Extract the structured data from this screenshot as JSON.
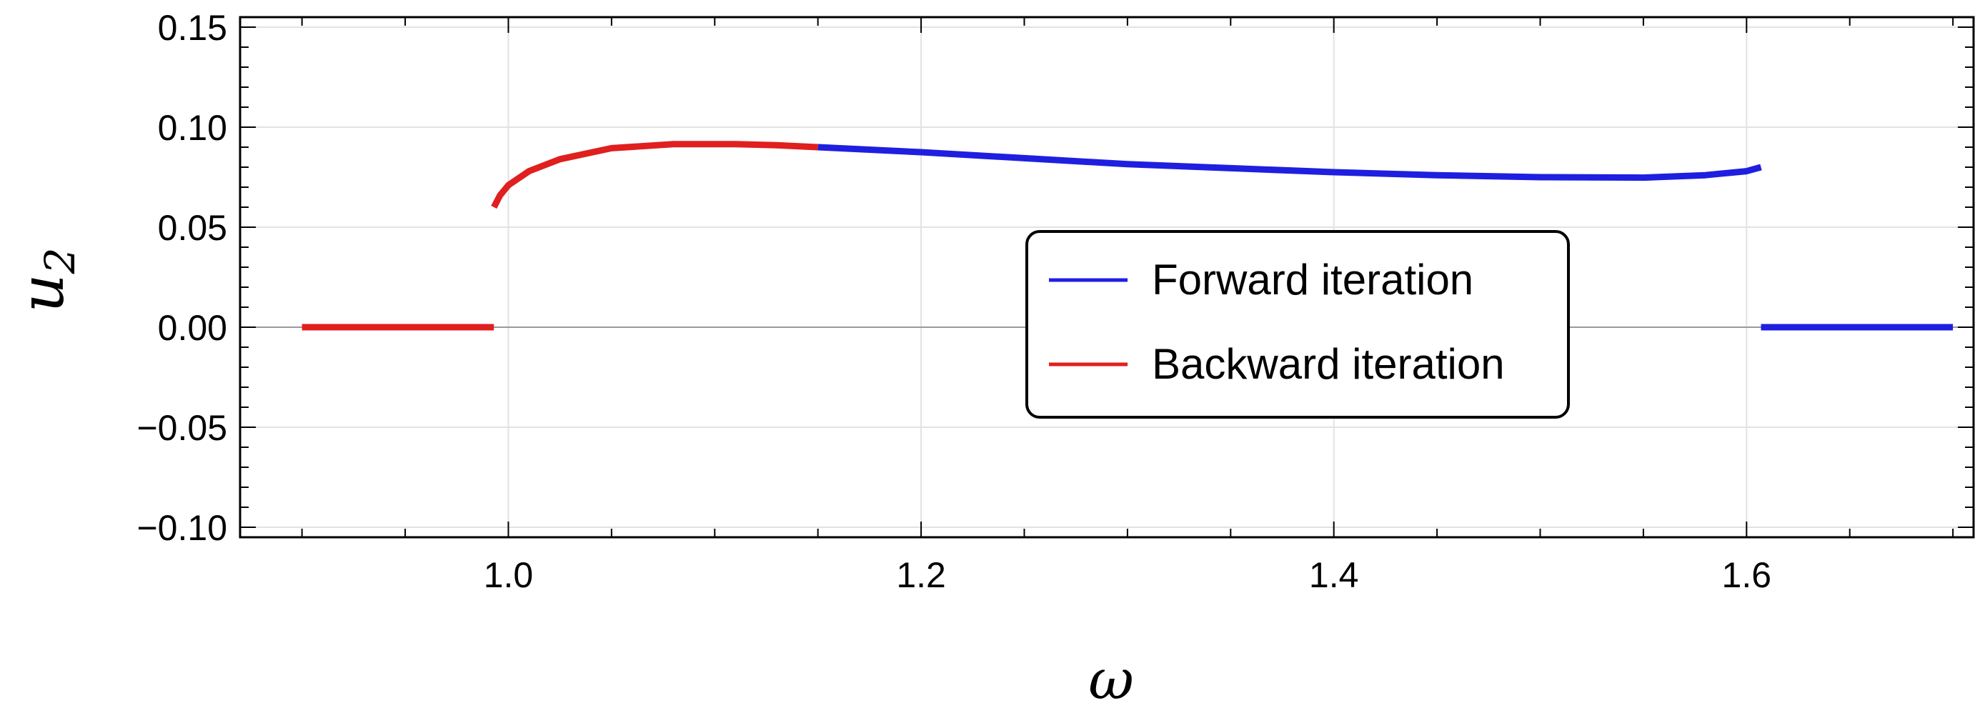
{
  "chart_data": {
    "type": "line",
    "xlabel": "ω",
    "ylabel_base": "u",
    "ylabel_sub": "2",
    "xlim": [
      0.87,
      1.71
    ],
    "ylim": [
      -0.105,
      0.155
    ],
    "x_ticks": [
      1.0,
      1.2,
      1.4,
      1.6
    ],
    "x_tick_labels": [
      "1.0",
      "1.2",
      "1.4",
      "1.6"
    ],
    "x_minor_step": 0.05,
    "y_ticks": [
      -0.1,
      -0.05,
      0.0,
      0.05,
      0.1,
      0.15
    ],
    "y_tick_labels": [
      "−0.10",
      "−0.05",
      "0.00",
      "0.05",
      "0.10",
      "0.15"
    ],
    "y_minor_step": 0.01,
    "grid": true,
    "legend_placement": "center-right",
    "colors": {
      "forward": "#1f1fe0",
      "backward": "#e01f1f"
    },
    "series": [
      {
        "name": "Forward iteration",
        "color": "#1f1fe0",
        "segments": [
          {
            "x": [
              1.15,
              1.2,
              1.25,
              1.3,
              1.35,
              1.4,
              1.45,
              1.5,
              1.55,
              1.58,
              1.6,
              1.607
            ],
            "y": [
              0.09,
              0.0875,
              0.0845,
              0.0815,
              0.0795,
              0.0775,
              0.076,
              0.075,
              0.0748,
              0.076,
              0.078,
              0.08
            ]
          },
          {
            "x": [
              1.607,
              1.7
            ],
            "y": [
              0.0,
              0.0
            ]
          }
        ]
      },
      {
        "name": "Backward iteration",
        "color": "#e01f1f",
        "segments": [
          {
            "x": [
              0.9,
              0.993
            ],
            "y": [
              0.0,
              0.0
            ]
          },
          {
            "x": [
              0.993,
              0.996,
              1.0,
              1.01,
              1.025,
              1.05,
              1.08,
              1.11,
              1.13,
              1.15
            ],
            "y": [
              0.06,
              0.066,
              0.071,
              0.078,
              0.084,
              0.0895,
              0.0915,
              0.0915,
              0.091,
              0.09
            ]
          }
        ]
      }
    ]
  }
}
